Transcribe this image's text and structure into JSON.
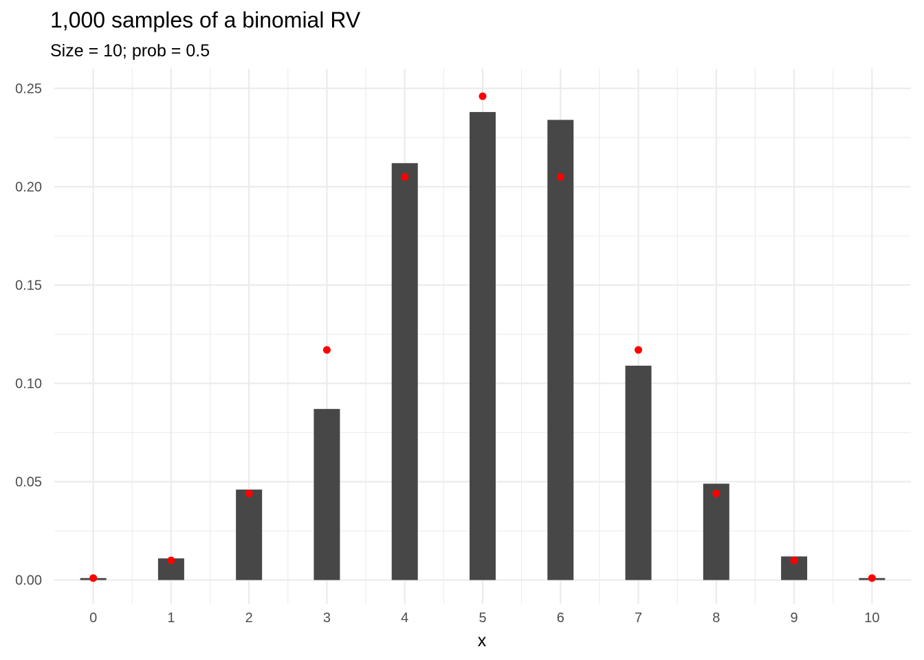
{
  "chart_data": {
    "type": "bar",
    "title": "1,000 samples of a binomial RV",
    "subtitle": "Size = 10; prob = 0.5",
    "xlabel": "x",
    "ylabel": "",
    "categories": [
      0,
      1,
      2,
      3,
      4,
      5,
      6,
      7,
      8,
      9,
      10
    ],
    "x_tick_labels": [
      "0",
      "1",
      "2",
      "3",
      "4",
      "5",
      "6",
      "7",
      "8",
      "9",
      "10"
    ],
    "y_ticks": [
      0,
      0.05,
      0.1,
      0.15,
      0.2,
      0.25
    ],
    "y_tick_labels": [
      "0.00",
      "0.05",
      "0.10",
      "0.15",
      "0.20",
      "0.25"
    ],
    "xlim": [
      -0.5,
      10.5
    ],
    "ylim": [
      -0.012,
      0.26
    ],
    "grid": true,
    "legend": "none",
    "series": [
      {
        "type": "bar",
        "values": [
          0.001,
          0.011,
          0.046,
          0.087,
          0.212,
          0.238,
          0.234,
          0.109,
          0.049,
          0.012,
          0.001
        ],
        "color": "#474747"
      },
      {
        "type": "scatter",
        "values": [
          0.001,
          0.01,
          0.044,
          0.117,
          0.205,
          0.246,
          0.205,
          0.117,
          0.044,
          0.01,
          0.001
        ],
        "color": "#ff0000"
      }
    ]
  }
}
